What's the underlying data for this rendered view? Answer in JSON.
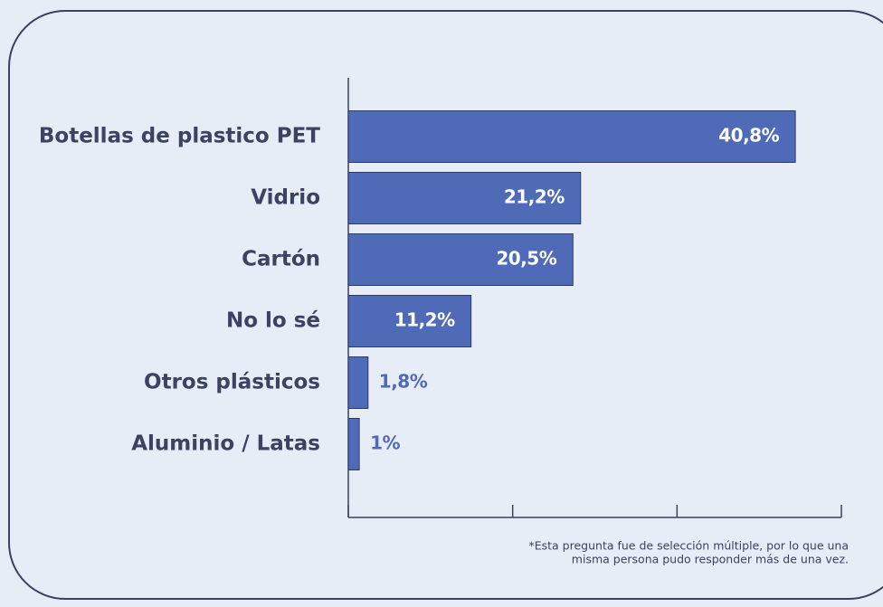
{
  "chart_data": {
    "type": "bar",
    "orientation": "horizontal",
    "categories": [
      "Botellas de plastico PET",
      "Vidrio",
      "Cartón",
      "No lo sé",
      "Otros plásticos",
      "Aluminio / Latas"
    ],
    "values": [
      40.8,
      21.2,
      20.5,
      11.2,
      1.8,
      1
    ],
    "value_labels": [
      "40,8%",
      "21,2%",
      "20,5%",
      "11,2%",
      "1,8%",
      "1%"
    ],
    "color": "#4f6bb8",
    "xlim": [
      0,
      45
    ],
    "xticks": [
      0,
      15,
      30,
      45
    ],
    "note": [
      "*Esta pregunta fue de selección múltiple, por lo que una",
      "misma persona pudo responder más de una vez."
    ]
  }
}
